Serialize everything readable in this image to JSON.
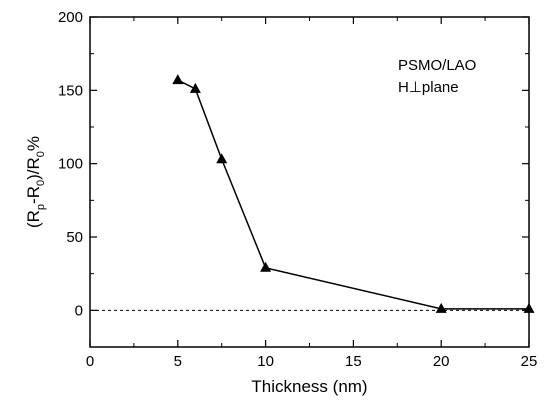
{
  "chart_data": {
    "type": "line",
    "xlabel": "Thickness (nm)",
    "ylabel": "(Rp-R0)/R0%",
    "ylabel_parts": {
      "open": "(R",
      "sub1": "p",
      "mid": "-R",
      "sub2": "0",
      "mid2": ")/R",
      "sub3": "0",
      "end": "%"
    },
    "xlim": [
      0,
      25
    ],
    "ylim": [
      -25,
      200
    ],
    "x_ticks": [
      0,
      5,
      10,
      15,
      20,
      25
    ],
    "y_ticks": [
      0,
      50,
      100,
      150,
      200
    ],
    "grid": false,
    "series": [
      {
        "marker": "triangle",
        "color": "#000000",
        "x": [
          5,
          6,
          7.5,
          10,
          20,
          25
        ],
        "y": [
          157,
          151,
          103,
          29,
          1,
          1
        ]
      }
    ],
    "reference_line": {
      "y": 0,
      "style": "dashed"
    },
    "annotations": {
      "line1": "PSMO/LAO",
      "line2": "H⊥plane"
    }
  }
}
